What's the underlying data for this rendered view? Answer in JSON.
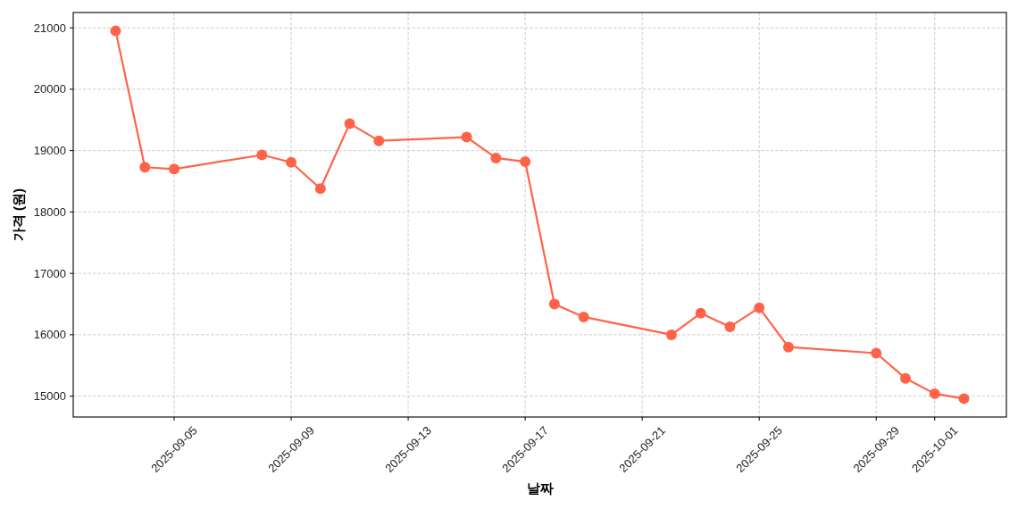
{
  "chart_data": {
    "type": "line",
    "xlabel": "날짜",
    "ylabel": "가격 (원)",
    "x": [
      "2025-09-03",
      "2025-09-04",
      "2025-09-05",
      "2025-09-08",
      "2025-09-09",
      "2025-09-10",
      "2025-09-11",
      "2025-09-12",
      "2025-09-15",
      "2025-09-16",
      "2025-09-17",
      "2025-09-18",
      "2025-09-19",
      "2025-09-22",
      "2025-09-23",
      "2025-09-24",
      "2025-09-25",
      "2025-09-26",
      "2025-09-29",
      "2025-09-30",
      "2025-10-01",
      "2025-10-02"
    ],
    "series": [
      {
        "color": "#ff6347",
        "values": [
          20950,
          18730,
          18700,
          18930,
          18810,
          18380,
          19440,
          19160,
          19220,
          18880,
          18820,
          16500,
          16290,
          16000,
          16350,
          16130,
          16440,
          15800,
          15700,
          15290,
          15040,
          14960
        ]
      }
    ],
    "xlim": [
      "2025-09-01T13:12",
      "2025-10-03T10:48"
    ],
    "ylim": [
      14660,
      21250
    ],
    "xticks": [
      "2025-09-05",
      "2025-09-09",
      "2025-09-13",
      "2025-09-17",
      "2025-09-21",
      "2025-09-25",
      "2025-09-29",
      "2025-10-01"
    ],
    "yticks": [
      15000,
      16000,
      17000,
      18000,
      19000,
      20000,
      21000
    ],
    "grid": true,
    "marker": "circle",
    "line_style": "solid"
  }
}
